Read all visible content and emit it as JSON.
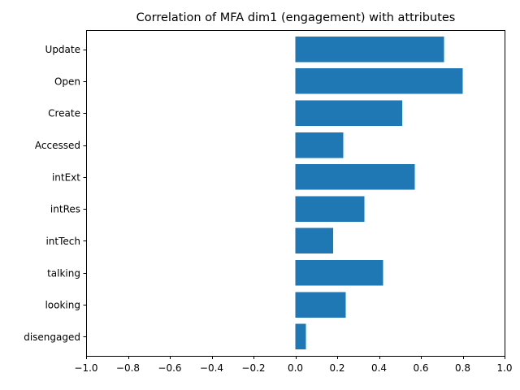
{
  "chart_data": {
    "type": "bar",
    "orientation": "horizontal",
    "title": "Correlation of MFA dim1 (engagement) with attributes",
    "xlabel": "",
    "ylabel": "",
    "xlim": [
      -1.0,
      1.0
    ],
    "x_ticks": [
      -1.0,
      -0.8,
      -0.6,
      -0.4,
      -0.2,
      0.0,
      0.2,
      0.4,
      0.6,
      0.8,
      1.0
    ],
    "x_tick_labels": [
      "−1.0",
      "−0.8",
      "−0.6",
      "−0.4",
      "−0.2",
      "0.0",
      "0.2",
      "0.4",
      "0.6",
      "0.8",
      "1.0"
    ],
    "categories": [
      "Update",
      "Open",
      "Create",
      "Accessed",
      "intExt",
      "intRes",
      "intTech",
      "talking",
      "looking",
      "disengaged"
    ],
    "values": [
      0.71,
      0.8,
      0.51,
      0.23,
      0.57,
      0.33,
      0.18,
      0.42,
      0.24,
      0.05
    ],
    "grid": false,
    "bar_color": "#1f77b4"
  }
}
